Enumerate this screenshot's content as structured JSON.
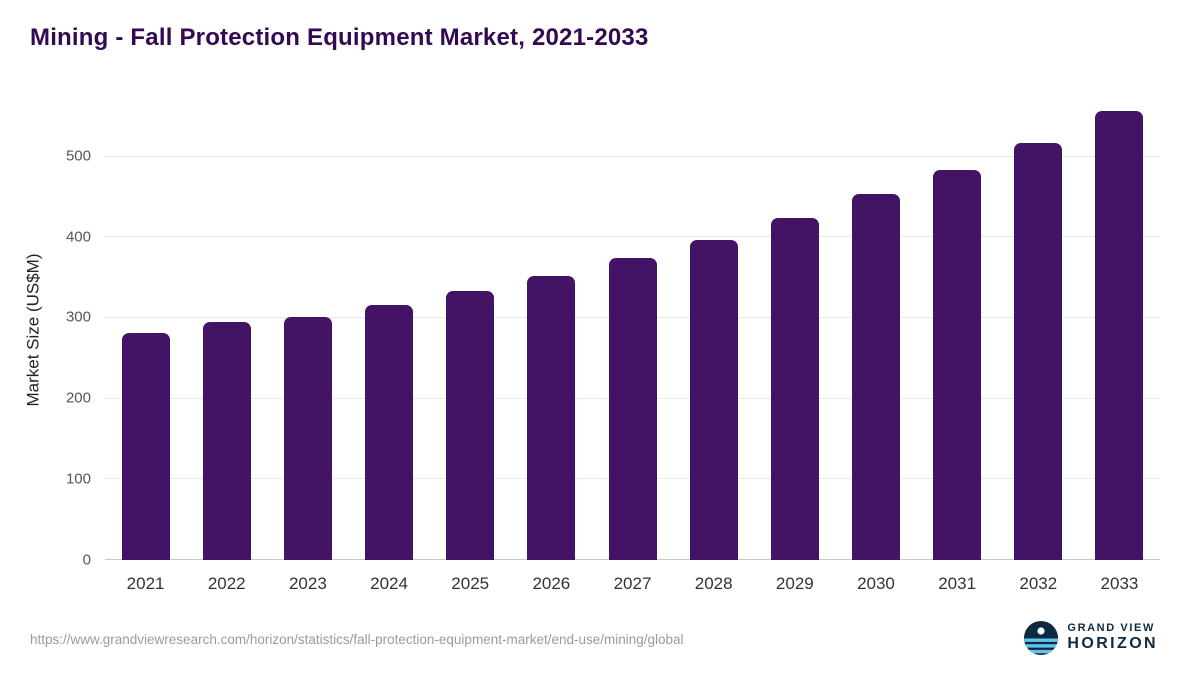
{
  "page": {
    "title": "Mining - Fall Protection Equipment Market, 2021-2033",
    "source_url": "https://www.grandviewresearch.com/horizon/statistics/fall-protection-equipment-market/end-use/mining/global"
  },
  "logo": {
    "line1": "GRAND VIEW",
    "line2": "HORIZON"
  },
  "colors": {
    "bar": "#431366",
    "title": "#330a52",
    "logo_navy": "#0d2a40",
    "logo_blue": "#63c3ea"
  },
  "chart_data": {
    "type": "bar",
    "title": "Mining - Fall Protection Equipment Market, 2021-2033",
    "xlabel": "",
    "ylabel": "Market Size (US$M)",
    "categories": [
      "2021",
      "2022",
      "2023",
      "2024",
      "2025",
      "2026",
      "2027",
      "2028",
      "2029",
      "2030",
      "2031",
      "2032",
      "2033"
    ],
    "values": [
      281,
      295,
      301,
      316,
      333,
      352,
      374,
      396,
      424,
      453,
      483,
      517,
      557
    ],
    "yticks": [
      0,
      100,
      200,
      300,
      400,
      500
    ],
    "ylim": [
      0,
      570
    ],
    "grid": "horizontal",
    "legend": "none",
    "bar_color": "#431366"
  }
}
